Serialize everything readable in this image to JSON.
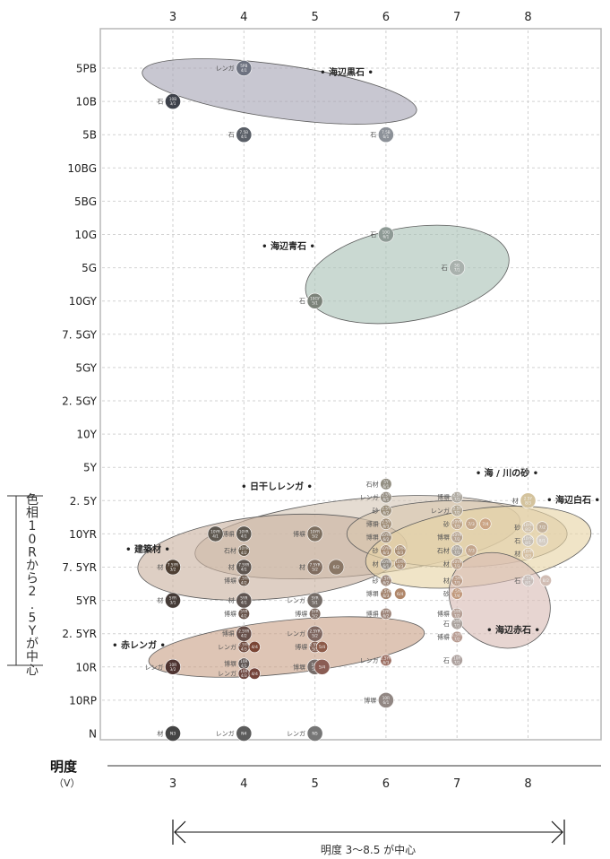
{
  "chart_data": {
    "type": "scatter",
    "title": "",
    "x_axis": {
      "label": "明度",
      "sublabel": "（V）",
      "ticks": [
        3,
        4,
        5,
        6,
        7,
        8
      ],
      "range": [
        2,
        9
      ]
    },
    "y_axis": {
      "label": "色相10Rから2.5Yが中心",
      "categories": [
        "N",
        "10RP",
        "10R",
        "2.5YR",
        "5YR",
        "7.5YR",
        "10YR",
        "2.5Y",
        "5Y",
        "10Y",
        "2.5GY",
        "5GY",
        "7.5GY",
        "10GY",
        "5G",
        "10G",
        "5BG",
        "10BG",
        "5B",
        "10B",
        "5PB"
      ],
      "tick_labels": [
        "N",
        "10RP",
        "10R",
        "2. 5YR",
        "5YR",
        "7. 5YR",
        "10YR",
        "2. 5Y",
        "5Y",
        "10Y",
        "2. 5GY",
        "5GY",
        "7. 5GY",
        "10GY",
        "5G",
        "10G",
        "5BG",
        "10BG",
        "5B",
        "10B",
        "5PB"
      ]
    },
    "range_note": "明度 3〜8.5 が中心",
    "groups": [
      {
        "name": "海辺黒石",
        "color": "#a7a4b4",
        "ellipse": {
          "x": 4.5,
          "y": 19.3,
          "rx": 1.95,
          "ry": 0.8,
          "rot": 8
        }
      },
      {
        "name": "海辺青石",
        "color": "#a9c2b6",
        "ellipse": {
          "x": 6.3,
          "y": 13.8,
          "rx": 1.45,
          "ry": 1.4,
          "rot": -10
        }
      },
      {
        "name": "日干しレンガ",
        "color": "#d5c7b6",
        "ellipse": {
          "x": 5.6,
          "y": 5.9,
          "rx": 2.3,
          "ry": 1.15,
          "rot": -6
        }
      },
      {
        "name": "建築材",
        "color": "#c9b2a0",
        "ellipse": {
          "x": 4.4,
          "y": 5.3,
          "rx": 1.9,
          "ry": 1.25,
          "rot": -5
        }
      },
      {
        "name": "赤レンガ",
        "color": "#caa188",
        "ellipse": {
          "x": 4.6,
          "y": 2.6,
          "rx": 1.95,
          "ry": 0.8,
          "rot": -6
        }
      },
      {
        "name": "海 / 川の砂",
        "color": "#d9c7ae",
        "ellipse": {
          "x": 7.0,
          "y": 6.0,
          "rx": 1.55,
          "ry": 1.0,
          "rot": 0
        }
      },
      {
        "name": "海辺白石",
        "color": "#e7d3a5",
        "ellipse": {
          "x": 7.3,
          "y": 5.6,
          "rx": 1.6,
          "ry": 1.15,
          "rot": -8
        }
      },
      {
        "name": "海辺赤石",
        "color": "#d8bcb4",
        "ellipse": {
          "x": 7.6,
          "y": 4.0,
          "rx": 0.75,
          "ry": 1.35,
          "rot": 35
        }
      }
    ],
    "points": [
      {
        "x": 4,
        "y": 20,
        "label": "レンガ",
        "code": "5PB 4/1",
        "color": "#6d7280"
      },
      {
        "x": 3,
        "y": 19,
        "label": "石",
        "code": "10B 3/1",
        "color": "#3d414a"
      },
      {
        "x": 4,
        "y": 18,
        "label": "石",
        "code": "7.5B 4/1",
        "color": "#5a5f67"
      },
      {
        "x": 6,
        "y": 18,
        "label": "石",
        "code": "7.5B 6/1",
        "color": "#8c9198"
      },
      {
        "x": 6,
        "y": 15,
        "label": "石",
        "code": "10G 6/1",
        "color": "#8e9a95"
      },
      {
        "x": 7,
        "y": 14,
        "label": "石",
        "code": "5G 7/1",
        "color": "#a9b1ad"
      },
      {
        "x": 5,
        "y": 13,
        "label": "石",
        "code": "10GY 5/1",
        "color": "#7b8279"
      },
      {
        "x": 6,
        "y": 7.5,
        "label": "石材",
        "code": "5Y 6/1",
        "color": "#938f83"
      },
      {
        "x": 6,
        "y": 7.1,
        "label": "レンガ",
        "code": "2.5Y 6/1",
        "color": "#979085"
      },
      {
        "x": 6,
        "y": 6.7,
        "label": "砂",
        "code": "2.5Y 6/2",
        "color": "#9c8f7b"
      },
      {
        "x": 6,
        "y": 6.3,
        "label": "博塀",
        "code": "2.5Y 6/3",
        "color": "#a2907a"
      },
      {
        "x": 6,
        "y": 5.9,
        "label": "博塀",
        "code": "10YR 6/2",
        "color": "#9d8c7a"
      },
      {
        "x": 6,
        "y": 5.5,
        "label": "砂",
        "code": "10YR 6/3",
        "color": "#a88d74"
      },
      {
        "x": 6,
        "y": 5.1,
        "label": "材",
        "code": "10YR 6/1",
        "color": "#928b82"
      },
      {
        "x": 6,
        "y": 4.6,
        "label": "砂",
        "code": "7.5YR 6/2",
        "color": "#9e887b"
      },
      {
        "x": 6,
        "y": 4.2,
        "label": "博塀",
        "code": "7.5YR 6/3",
        "color": "#a58671"
      },
      {
        "x": 6,
        "y": 3.6,
        "label": "博塀",
        "code": "5YR 6/2",
        "color": "#9d8479"
      },
      {
        "x": 6,
        "y": 2.2,
        "label": "レンガ",
        "code": "2.5YR 6/3",
        "color": "#9d7064"
      },
      {
        "x": 6,
        "y": 1,
        "label": "博塀",
        "code": "10R 6/1",
        "color": "#918783"
      },
      {
        "x": 7,
        "y": 7.1,
        "label": "博塀",
        "code": "2.5Y 7/1",
        "color": "#b1aca3"
      },
      {
        "x": 7,
        "y": 6.7,
        "label": "レンガ",
        "code": "2.5Y 7/2",
        "color": "#b5a995"
      },
      {
        "x": 7,
        "y": 6.3,
        "label": "砂",
        "code": "10YR 7/3",
        "color": "#bea58b"
      },
      {
        "x": 7,
        "y": 5.9,
        "label": "博塀",
        "code": "10YR 7/2",
        "color": "#b8a592"
      },
      {
        "x": 7,
        "y": 5.5,
        "label": "石材",
        "code": "10YR 7/1",
        "color": "#aba49b"
      },
      {
        "x": 7,
        "y": 5.1,
        "label": "材",
        "code": "10YR 7/3",
        "color": "#bb9f87"
      },
      {
        "x": 7,
        "y": 4.6,
        "label": "材",
        "code": "7.5YR 7/3",
        "color": "#bc9d88"
      },
      {
        "x": 7,
        "y": 4.2,
        "label": "砂",
        "code": "7.5YR 7/4",
        "color": "#c29a7e"
      },
      {
        "x": 7,
        "y": 3.6,
        "label": "博塀",
        "code": "5YR 7/2",
        "color": "#b59f95"
      },
      {
        "x": 7,
        "y": 3.3,
        "label": "石",
        "code": "5YR 7/1",
        "color": "#aaa29d"
      },
      {
        "x": 7,
        "y": 2.9,
        "label": "博塀",
        "code": "2.5YR 7/2",
        "color": "#b89c92"
      },
      {
        "x": 7,
        "y": 2.2,
        "label": "石",
        "code": "10R 7/1",
        "color": "#ada19e"
      },
      {
        "x": 8,
        "y": 7,
        "label": "材",
        "code": "2.5Y 8/3",
        "color": "#d4c39d"
      },
      {
        "x": 8,
        "y": 6.2,
        "label": "砂",
        "code": "10YR 8/2",
        "color": "#cfc0ab"
      },
      {
        "x": 8,
        "y": 5.8,
        "label": "石",
        "code": "10YR 8/1",
        "color": "#c8c0b6"
      },
      {
        "x": 8,
        "y": 5.4,
        "label": "材",
        "code": "10YR 8/3",
        "color": "#d4bea0"
      },
      {
        "x": 8,
        "y": 4.6,
        "label": "石",
        "code": "2.5YR 8/1",
        "color": "#c7bdb9"
      },
      {
        "x": 4,
        "y": 6,
        "label": "博塀",
        "code": "10YR 4/1",
        "color": "#5e5850"
      },
      {
        "x": 4,
        "y": 5.5,
        "label": "石材",
        "code": "10YR 4/2",
        "color": "#655848"
      },
      {
        "x": 4,
        "y": 5,
        "label": "材",
        "code": "7.5YR 4/1",
        "color": "#5f5650"
      },
      {
        "x": 4,
        "y": 4.6,
        "label": "博塀",
        "code": "7.5YR 4/2",
        "color": "#675548"
      },
      {
        "x": 4,
        "y": 4,
        "label": "材",
        "code": "5YR 4/1",
        "color": "#5f5551"
      },
      {
        "x": 4,
        "y": 3.6,
        "label": "博塀",
        "code": "5YR 4/2",
        "color": "#665249"
      },
      {
        "x": 4,
        "y": 3,
        "label": "博塀",
        "code": "2.5YR 4/2",
        "color": "#674f49"
      },
      {
        "x": 4,
        "y": 2.6,
        "label": "レンガ",
        "code": "2.5YR 4/3",
        "color": "#6f4a3e"
      },
      {
        "x": 4,
        "y": 2.1,
        "label": "博塀",
        "code": "10R 4/1",
        "color": "#5e5452"
      },
      {
        "x": 4,
        "y": 1.8,
        "label": "レンガ",
        "code": "10R 4/3",
        "color": "#6d4740"
      },
      {
        "x": 4,
        "y": 0,
        "label": "レンガ",
        "code": "N4",
        "color": "#5c5c5c"
      },
      {
        "x": 3,
        "y": 5,
        "label": "材",
        "code": "7.5YR 3/2",
        "color": "#4e3f33"
      },
      {
        "x": 3,
        "y": 4,
        "label": "材",
        "code": "5YR 3/1",
        "color": "#453b37"
      },
      {
        "x": 3,
        "y": 2,
        "label": "レンガ",
        "code": "10R 3/2",
        "color": "#4e3431"
      },
      {
        "x": 3,
        "y": 0,
        "label": "材",
        "code": "N3",
        "color": "#444444"
      },
      {
        "x": 5,
        "y": 6,
        "label": "博塀",
        "code": "10YR 5/2",
        "color": "#7d6f60"
      },
      {
        "x": 5,
        "y": 5,
        "label": "材",
        "code": "7.5YR 5/2",
        "color": "#7f6c5f"
      },
      {
        "x": 5,
        "y": 4,
        "label": "レンガ",
        "code": "5YR 5/1",
        "color": "#756d68"
      },
      {
        "x": 5,
        "y": 3.6,
        "label": "博塀",
        "code": "5YR 5/2",
        "color": "#7d6a61"
      },
      {
        "x": 5,
        "y": 3,
        "label": "レンガ",
        "code": "2.5YR 5/2",
        "color": "#7f6760"
      },
      {
        "x": 5,
        "y": 2.6,
        "label": "博塀",
        "code": "2.5YR 5/3",
        "color": "#856255"
      },
      {
        "x": 5,
        "y": 2,
        "label": "博塀",
        "code": "10R 5/1",
        "color": "#766c69"
      },
      {
        "x": 5,
        "y": 0,
        "label": "レンガ",
        "code": "N5",
        "color": "#767676"
      }
    ],
    "extra_points": [
      {
        "x": 3.6,
        "y": 6,
        "code": "10YR 4/1",
        "color": "#5e5850"
      },
      {
        "x": 5.3,
        "y": 5,
        "code": "6/2",
        "color": "#8a7766"
      },
      {
        "x": 6.2,
        "y": 5.5,
        "code": "10YR 6/3",
        "color": "#a88d74"
      },
      {
        "x": 6.2,
        "y": 5.1,
        "code": "10YR 6/3",
        "color": "#a88d74"
      },
      {
        "x": 6.2,
        "y": 4.2,
        "code": "6/4",
        "color": "#b0876a"
      },
      {
        "x": 7.2,
        "y": 6.3,
        "code": "7/3",
        "color": "#c5a78b"
      },
      {
        "x": 7.4,
        "y": 6.3,
        "code": "7/4",
        "color": "#cba484"
      },
      {
        "x": 7.2,
        "y": 5.5,
        "code": "7/3",
        "color": "#c3a68e"
      },
      {
        "x": 8.2,
        "y": 6.2,
        "code": "7/2",
        "color": "#c3b19c"
      },
      {
        "x": 8.2,
        "y": 5.8,
        "code": "8/1",
        "color": "#d5cdc4"
      },
      {
        "x": 8.25,
        "y": 4.6,
        "code": "8/2",
        "color": "#d1bdb4"
      },
      {
        "x": 4.15,
        "y": 2.6,
        "code": "4/4",
        "color": "#7a4534"
      },
      {
        "x": 4.15,
        "y": 1.8,
        "code": "4/4",
        "color": "#74433a"
      },
      {
        "x": 5.1,
        "y": 2.6,
        "code": "5/4",
        "color": "#8d5b49"
      },
      {
        "x": 5.1,
        "y": 2,
        "code": "5/4",
        "color": "#8a5d54"
      }
    ]
  }
}
